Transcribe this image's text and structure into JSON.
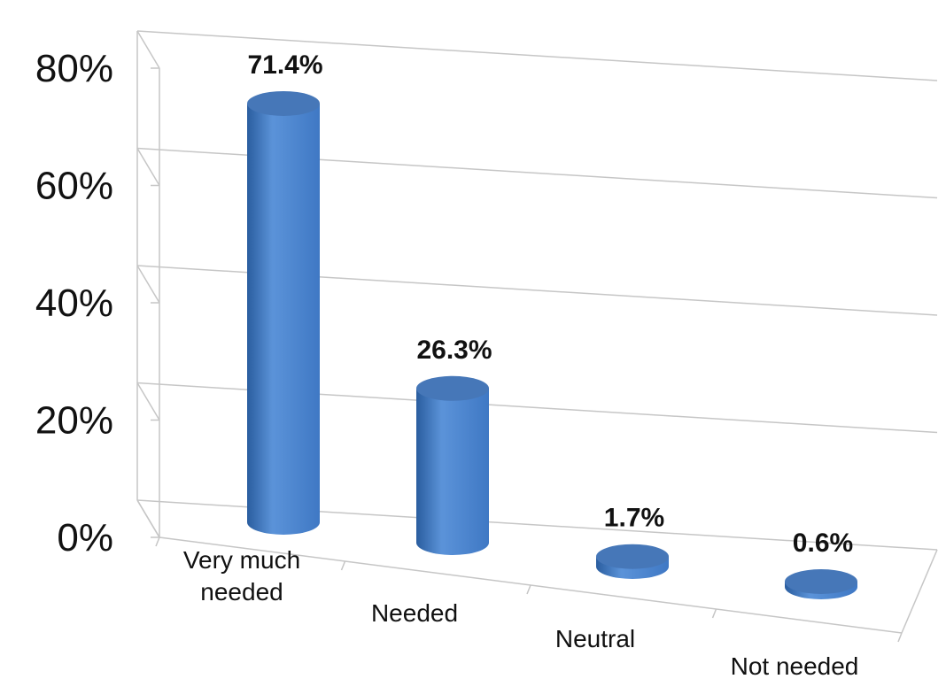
{
  "chart_data": {
    "type": "bar",
    "style": "3d-cylinder",
    "categories": [
      "Very much needed",
      "Needed",
      "Neutral",
      "Not needed"
    ],
    "category_label_lines": [
      [
        "Very much",
        "needed"
      ],
      [
        "Needed"
      ],
      [
        "Neutral"
      ],
      [
        "Not needed"
      ]
    ],
    "values": [
      71.4,
      26.3,
      1.7,
      0.6
    ],
    "data_labels": [
      "71.4%",
      "26.3%",
      "1.7%",
      "0.6%"
    ],
    "yticks": [
      "0%",
      "20%",
      "40%",
      "60%",
      "80%"
    ],
    "ylim": [
      0,
      80
    ],
    "grid": true,
    "legend": "none",
    "colors": {
      "bar_light": "#5b93d9",
      "bar_mid": "#3f78c4",
      "bar_dark": "#2a5d9f",
      "bar_top": "#4677b8",
      "grid": "#c6c6c6"
    }
  }
}
